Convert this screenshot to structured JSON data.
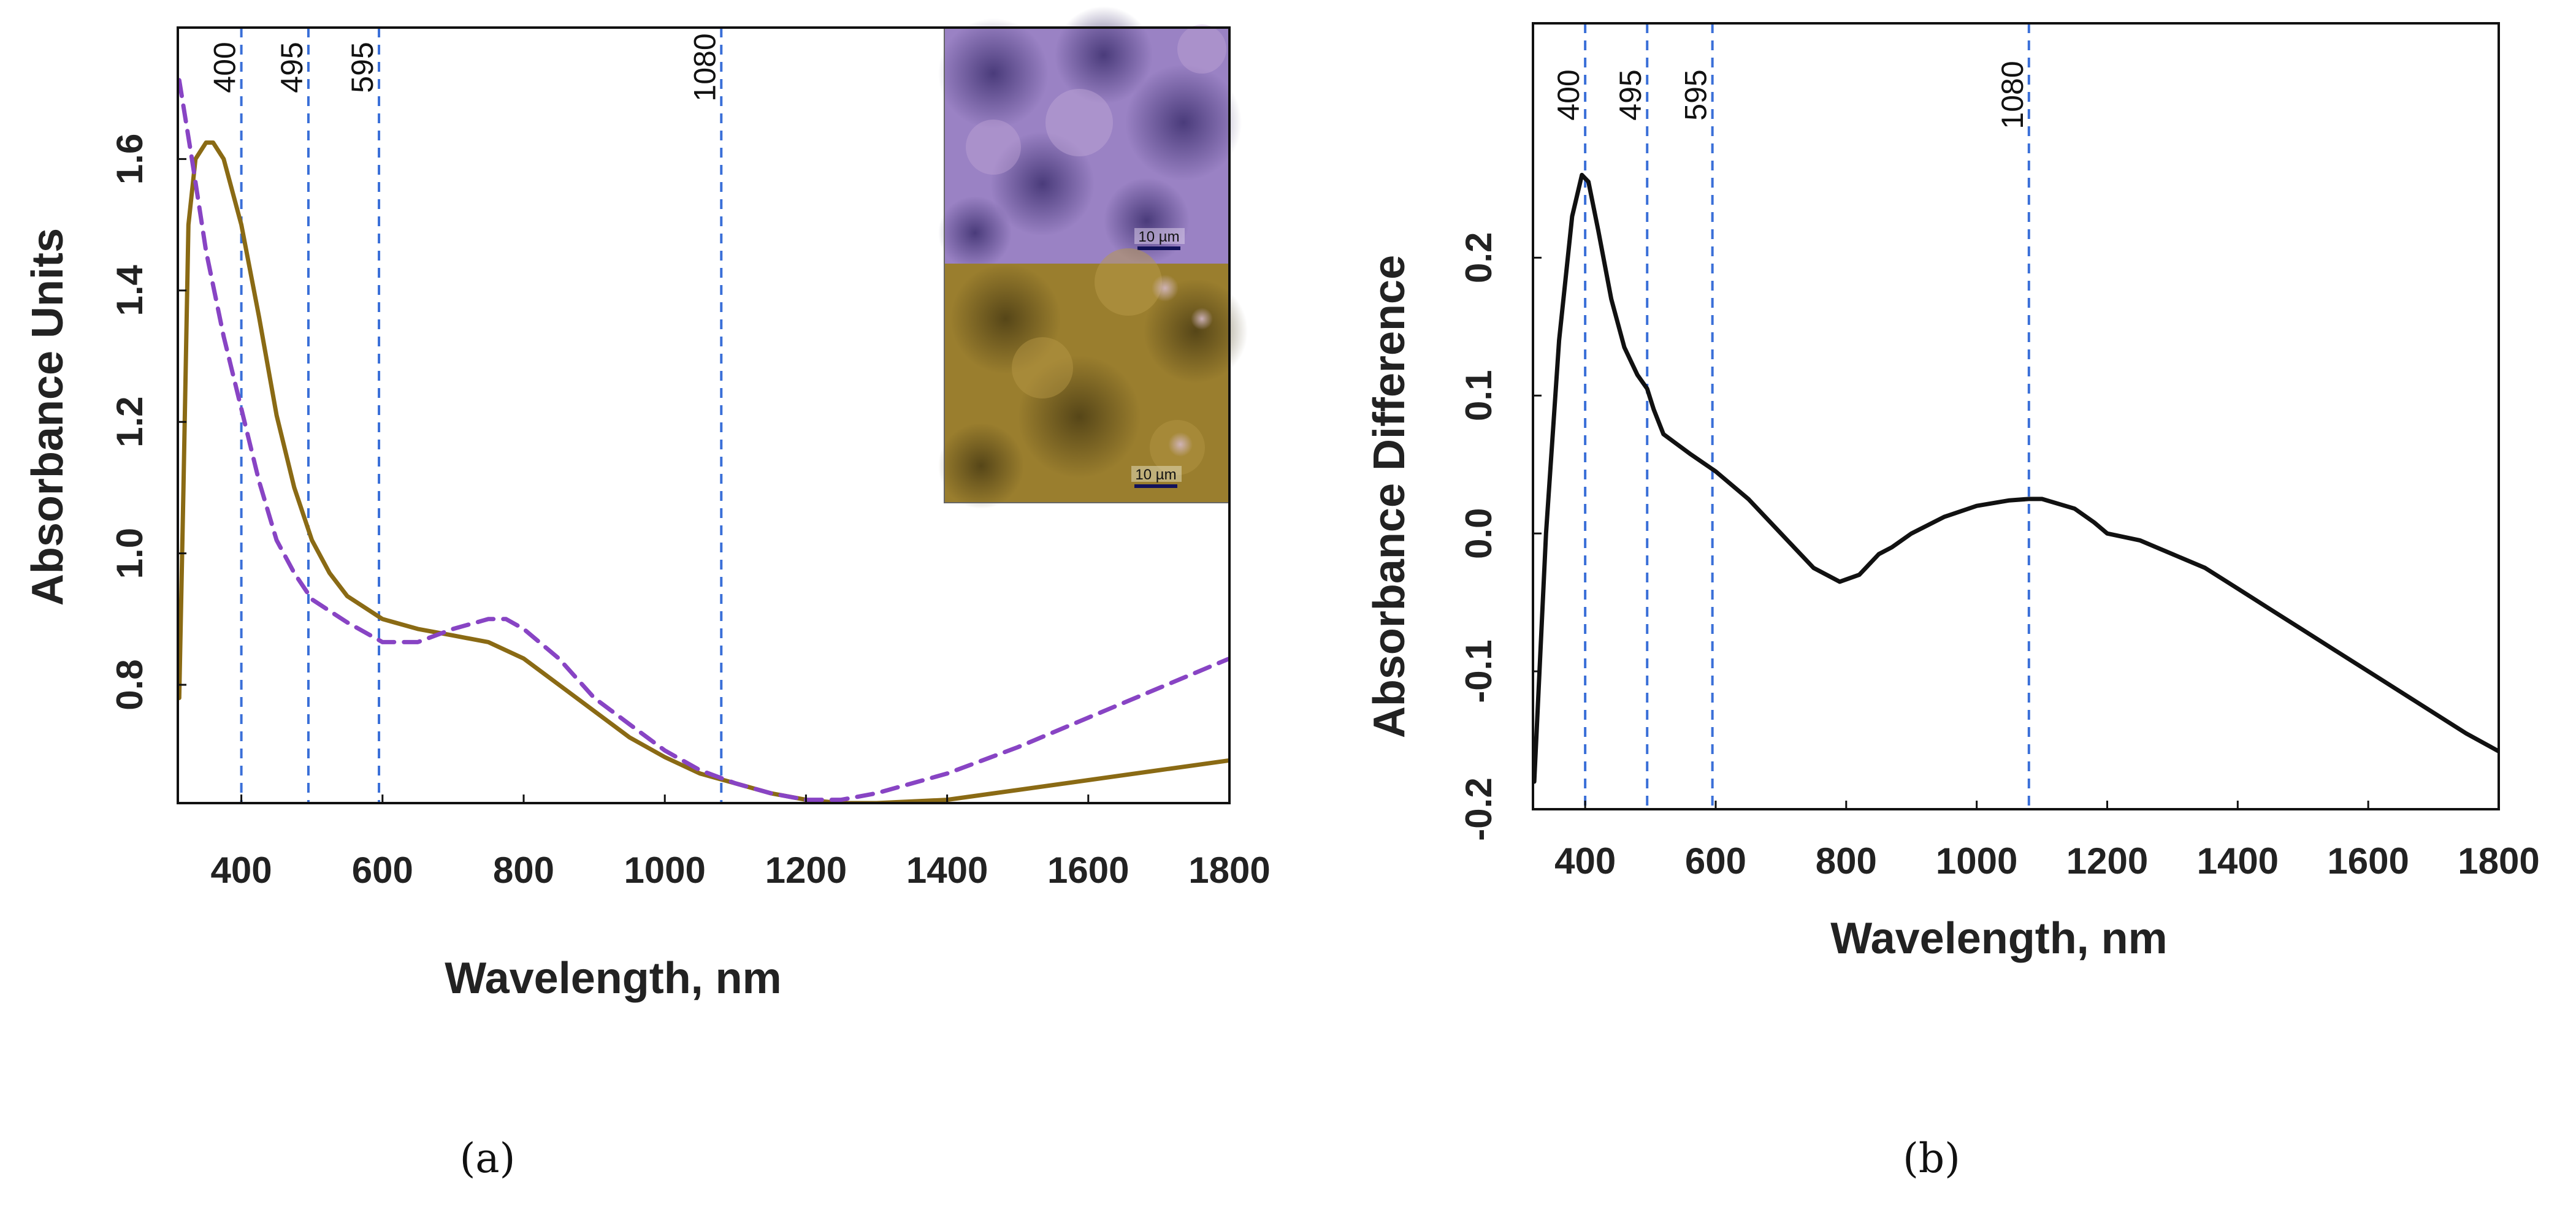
{
  "colors": {
    "solid_series": "#8a6a14",
    "dashed_series": "#8844c4",
    "difference_series": "#111111",
    "reference_lines": "#3a6fd8",
    "axis": "#111111"
  },
  "inset": {
    "top": {
      "scale_bar_label": "10 µm",
      "tint": "purple"
    },
    "bottom": {
      "scale_bar_label": "10 µm",
      "tint": "gold"
    }
  },
  "chart_data": [
    {
      "type": "line",
      "panel_label": "(a)",
      "title": "",
      "xlabel": "Wavelength, nm",
      "ylabel": "Absorbance Units",
      "xlim": [
        310,
        1800
      ],
      "ylim": [
        0.62,
        1.8
      ],
      "x_ticks": [
        "400",
        "600",
        "800",
        "1000",
        "1200",
        "1400",
        "1600",
        "1800"
      ],
      "x_tick_values": [
        400,
        600,
        800,
        1000,
        1200,
        1400,
        1600,
        1800
      ],
      "y_ticks": [
        "0.8",
        "1.0",
        "1.2",
        "1.4",
        "1.6"
      ],
      "y_tick_values": [
        0.8,
        1.0,
        1.2,
        1.4,
        1.6
      ],
      "reference_lines": [
        {
          "x": 400,
          "label": "400"
        },
        {
          "x": 495,
          "label": "495"
        },
        {
          "x": 595,
          "label": "595"
        },
        {
          "x": 1080,
          "label": "1080"
        }
      ],
      "series": [
        {
          "name": "solid",
          "style": "solid",
          "x": [
            312,
            318,
            325,
            335,
            350,
            360,
            375,
            400,
            425,
            450,
            475,
            500,
            525,
            550,
            600,
            650,
            700,
            750,
            800,
            850,
            900,
            950,
            1000,
            1050,
            1100,
            1150,
            1200,
            1250,
            1300,
            1400,
            1500,
            1600,
            1700,
            1800
          ],
          "y": [
            0.78,
            1.1,
            1.5,
            1.6,
            1.625,
            1.625,
            1.6,
            1.5,
            1.36,
            1.21,
            1.1,
            1.02,
            0.97,
            0.935,
            0.9,
            0.885,
            0.875,
            0.865,
            0.84,
            0.8,
            0.76,
            0.72,
            0.69,
            0.665,
            0.65,
            0.635,
            0.625,
            0.62,
            0.62,
            0.625,
            0.64,
            0.655,
            0.67,
            0.685
          ]
        },
        {
          "name": "dashed",
          "style": "dashed",
          "x": [
            312,
            330,
            350,
            375,
            400,
            425,
            450,
            475,
            500,
            550,
            600,
            650,
            700,
            750,
            775,
            800,
            850,
            900,
            950,
            1000,
            1050,
            1100,
            1150,
            1200,
            1250,
            1300,
            1400,
            1500,
            1600,
            1700,
            1800
          ],
          "y": [
            1.72,
            1.6,
            1.46,
            1.33,
            1.22,
            1.11,
            1.02,
            0.97,
            0.93,
            0.895,
            0.865,
            0.865,
            0.885,
            0.9,
            0.9,
            0.885,
            0.84,
            0.78,
            0.74,
            0.7,
            0.67,
            0.65,
            0.635,
            0.625,
            0.625,
            0.635,
            0.665,
            0.705,
            0.75,
            0.795,
            0.84
          ]
        }
      ]
    },
    {
      "type": "line",
      "panel_label": "(b)",
      "title": "",
      "xlabel": "Wavelength, nm",
      "ylabel": "Absorbance Difference",
      "xlim": [
        320,
        1800
      ],
      "ylim": [
        -0.2,
        0.37
      ],
      "x_ticks": [
        "400",
        "600",
        "800",
        "1000",
        "1200",
        "1400",
        "1600",
        "1800"
      ],
      "x_tick_values": [
        400,
        600,
        800,
        1000,
        1200,
        1400,
        1600,
        1800
      ],
      "y_ticks": [
        "-0.2",
        "-0.1",
        "0.0",
        "0.1",
        "0.2"
      ],
      "y_tick_values": [
        -0.2,
        -0.1,
        0.0,
        0.1,
        0.2
      ],
      "reference_lines": [
        {
          "x": 400,
          "label": "400"
        },
        {
          "x": 495,
          "label": "495"
        },
        {
          "x": 595,
          "label": "595"
        },
        {
          "x": 1080,
          "label": "1080"
        }
      ],
      "series": [
        {
          "name": "difference",
          "style": "solid",
          "x": [
            322,
            340,
            360,
            380,
            395,
            405,
            420,
            440,
            460,
            480,
            495,
            505,
            520,
            540,
            560,
            600,
            650,
            700,
            750,
            790,
            820,
            850,
            870,
            900,
            950,
            1000,
            1050,
            1080,
            1100,
            1150,
            1180,
            1200,
            1250,
            1300,
            1350,
            1400,
            1450,
            1500,
            1550,
            1600,
            1650,
            1700,
            1750,
            1800
          ],
          "y": [
            -0.18,
            0.0,
            0.14,
            0.23,
            0.26,
            0.255,
            0.22,
            0.17,
            0.135,
            0.115,
            0.105,
            0.09,
            0.072,
            0.065,
            0.058,
            0.045,
            0.025,
            0.0,
            -0.025,
            -0.035,
            -0.03,
            -0.015,
            -0.01,
            0.0,
            0.012,
            0.02,
            0.024,
            0.025,
            0.025,
            0.018,
            0.008,
            0.0,
            -0.005,
            -0.015,
            -0.025,
            -0.04,
            -0.055,
            -0.07,
            -0.085,
            -0.1,
            -0.115,
            -0.13,
            -0.145,
            -0.158
          ]
        }
      ]
    }
  ]
}
